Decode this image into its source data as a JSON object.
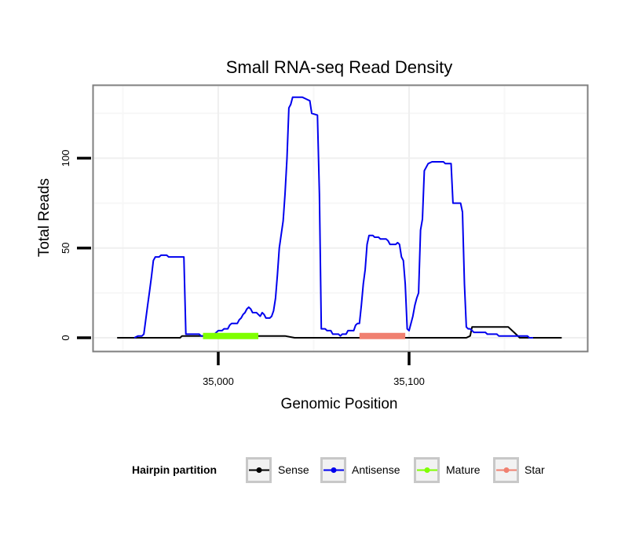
{
  "chart_data": {
    "type": "line",
    "title": "Small RNA-seq Read Density",
    "xlabel": "Genomic Position",
    "ylabel": "Total Reads",
    "xlim": [
      34935,
      35193
    ],
    "ylim": [
      -7,
      140
    ],
    "x_ticks": [
      {
        "value": 35000,
        "label": "35,000"
      },
      {
        "value": 35100,
        "label": "35,100"
      }
    ],
    "y_ticks": [
      {
        "value": 0,
        "label": "0"
      },
      {
        "value": 50,
        "label": "50"
      },
      {
        "value": 100,
        "label": "100"
      }
    ],
    "x_grid_minor": [
      34950,
      35050,
      35150
    ],
    "y_grid_minor": [
      25,
      75,
      125
    ],
    "grid": true,
    "series": [
      {
        "name": "Sense",
        "color": "#000000",
        "points": [
          [
            34947,
            0
          ],
          [
            34980,
            0
          ],
          [
            34981,
            1
          ],
          [
            35000,
            1
          ],
          [
            35020,
            1
          ],
          [
            35035,
            1
          ],
          [
            35040,
            0
          ],
          [
            35060,
            0
          ],
          [
            35100,
            0
          ],
          [
            35130,
            0
          ],
          [
            35132,
            1
          ],
          [
            35133,
            6
          ],
          [
            35146,
            6
          ],
          [
            35152,
            6
          ],
          [
            35156,
            2
          ],
          [
            35158,
            0
          ],
          [
            35180,
            0
          ]
        ]
      },
      {
        "name": "Antisense",
        "color": "#0000ee",
        "points": [
          [
            34956,
            0
          ],
          [
            34958,
            1
          ],
          [
            34960,
            1
          ],
          [
            34961,
            2
          ],
          [
            34962,
            10
          ],
          [
            34963,
            18
          ],
          [
            34964,
            26
          ],
          [
            34965,
            34
          ],
          [
            34966,
            43
          ],
          [
            34967,
            45
          ],
          [
            34969,
            45
          ],
          [
            34970,
            46
          ],
          [
            34973,
            46
          ],
          [
            34974,
            45
          ],
          [
            34980,
            45
          ],
          [
            34982,
            45
          ],
          [
            34983,
            2
          ],
          [
            34988,
            2
          ],
          [
            34990,
            2
          ],
          [
            34991,
            1
          ],
          [
            34992,
            1
          ],
          [
            34993,
            2
          ],
          [
            34994,
            1
          ],
          [
            34995,
            1
          ],
          [
            34997,
            1
          ],
          [
            34998,
            2
          ],
          [
            34999,
            3
          ],
          [
            35000,
            4
          ],
          [
            35002,
            4
          ],
          [
            35003,
            5
          ],
          [
            35005,
            5
          ],
          [
            35006,
            7
          ],
          [
            35007,
            8
          ],
          [
            35010,
            8
          ],
          [
            35011,
            10
          ],
          [
            35012,
            11
          ],
          [
            35013,
            13
          ],
          [
            35014,
            14
          ],
          [
            35015,
            16
          ],
          [
            35016,
            17
          ],
          [
            35017,
            16
          ],
          [
            35018,
            14
          ],
          [
            35020,
            14
          ],
          [
            35021,
            13
          ],
          [
            35022,
            12
          ],
          [
            35023,
            14
          ],
          [
            35024,
            13
          ],
          [
            35025,
            11
          ],
          [
            35027,
            11
          ],
          [
            35028,
            12
          ],
          [
            35029,
            15
          ],
          [
            35030,
            22
          ],
          [
            35031,
            35
          ],
          [
            35032,
            50
          ],
          [
            35034,
            65
          ],
          [
            35035,
            80
          ],
          [
            35036,
            100
          ],
          [
            35037,
            128
          ],
          [
            35038,
            130
          ],
          [
            35039,
            134
          ],
          [
            35044,
            134
          ],
          [
            35046,
            133
          ],
          [
            35048,
            132
          ],
          [
            35049,
            125
          ],
          [
            35052,
            124
          ],
          [
            35053,
            80
          ],
          [
            35054,
            5
          ],
          [
            35056,
            5
          ],
          [
            35057,
            4
          ],
          [
            35059,
            4
          ],
          [
            35060,
            2
          ],
          [
            35063,
            2
          ],
          [
            35064,
            1
          ],
          [
            35065,
            2
          ],
          [
            35066,
            2
          ],
          [
            35067,
            2
          ],
          [
            35068,
            4
          ],
          [
            35069,
            4
          ],
          [
            35071,
            4
          ],
          [
            35072,
            7
          ],
          [
            35073,
            8
          ],
          [
            35074,
            8
          ],
          [
            35075,
            18
          ],
          [
            35076,
            30
          ],
          [
            35077,
            38
          ],
          [
            35078,
            52
          ],
          [
            35079,
            57
          ],
          [
            35081,
            57
          ],
          [
            35082,
            56
          ],
          [
            35084,
            56
          ],
          [
            35085,
            55
          ],
          [
            35088,
            55
          ],
          [
            35089,
            54
          ],
          [
            35090,
            52
          ],
          [
            35093,
            52
          ],
          [
            35094,
            53
          ],
          [
            35095,
            52
          ],
          [
            35096,
            45
          ],
          [
            35097,
            43
          ],
          [
            35098,
            30
          ],
          [
            35099,
            5
          ],
          [
            35100,
            4
          ],
          [
            35101,
            8
          ],
          [
            35102,
            12
          ],
          [
            35103,
            18
          ],
          [
            35104,
            22
          ],
          [
            35105,
            25
          ],
          [
            35106,
            60
          ],
          [
            35107,
            66
          ],
          [
            35108,
            93
          ],
          [
            35110,
            97
          ],
          [
            35112,
            98
          ],
          [
            35118,
            98
          ],
          [
            35119,
            97
          ],
          [
            35122,
            97
          ],
          [
            35123,
            75
          ],
          [
            35127,
            75
          ],
          [
            35128,
            70
          ],
          [
            35129,
            30
          ],
          [
            35130,
            6
          ],
          [
            35131,
            5
          ],
          [
            35132,
            5
          ],
          [
            35133,
            4
          ],
          [
            35134,
            3
          ],
          [
            35140,
            3
          ],
          [
            35141,
            2
          ],
          [
            35146,
            2
          ],
          [
            35147,
            1
          ],
          [
            35151,
            1
          ],
          [
            35156,
            1
          ],
          [
            35162,
            1
          ],
          [
            35163,
            0
          ],
          [
            35165,
            0
          ]
        ]
      }
    ],
    "segments": [
      {
        "name": "Mature",
        "color": "#7fff00",
        "x_start": 34992,
        "x_end": 35021,
        "y": 1
      },
      {
        "name": "Star",
        "color": "#f08070",
        "x_start": 35074,
        "x_end": 35098,
        "y": 1
      }
    ],
    "legend": {
      "title": "Hairpin partition",
      "position": "bottom",
      "entries": [
        {
          "label": "Sense",
          "color": "#000000"
        },
        {
          "label": "Antisense",
          "color": "#0000ee"
        },
        {
          "label": "Mature",
          "color": "#7fff00"
        },
        {
          "label": "Star",
          "color": "#f08070"
        }
      ]
    }
  }
}
